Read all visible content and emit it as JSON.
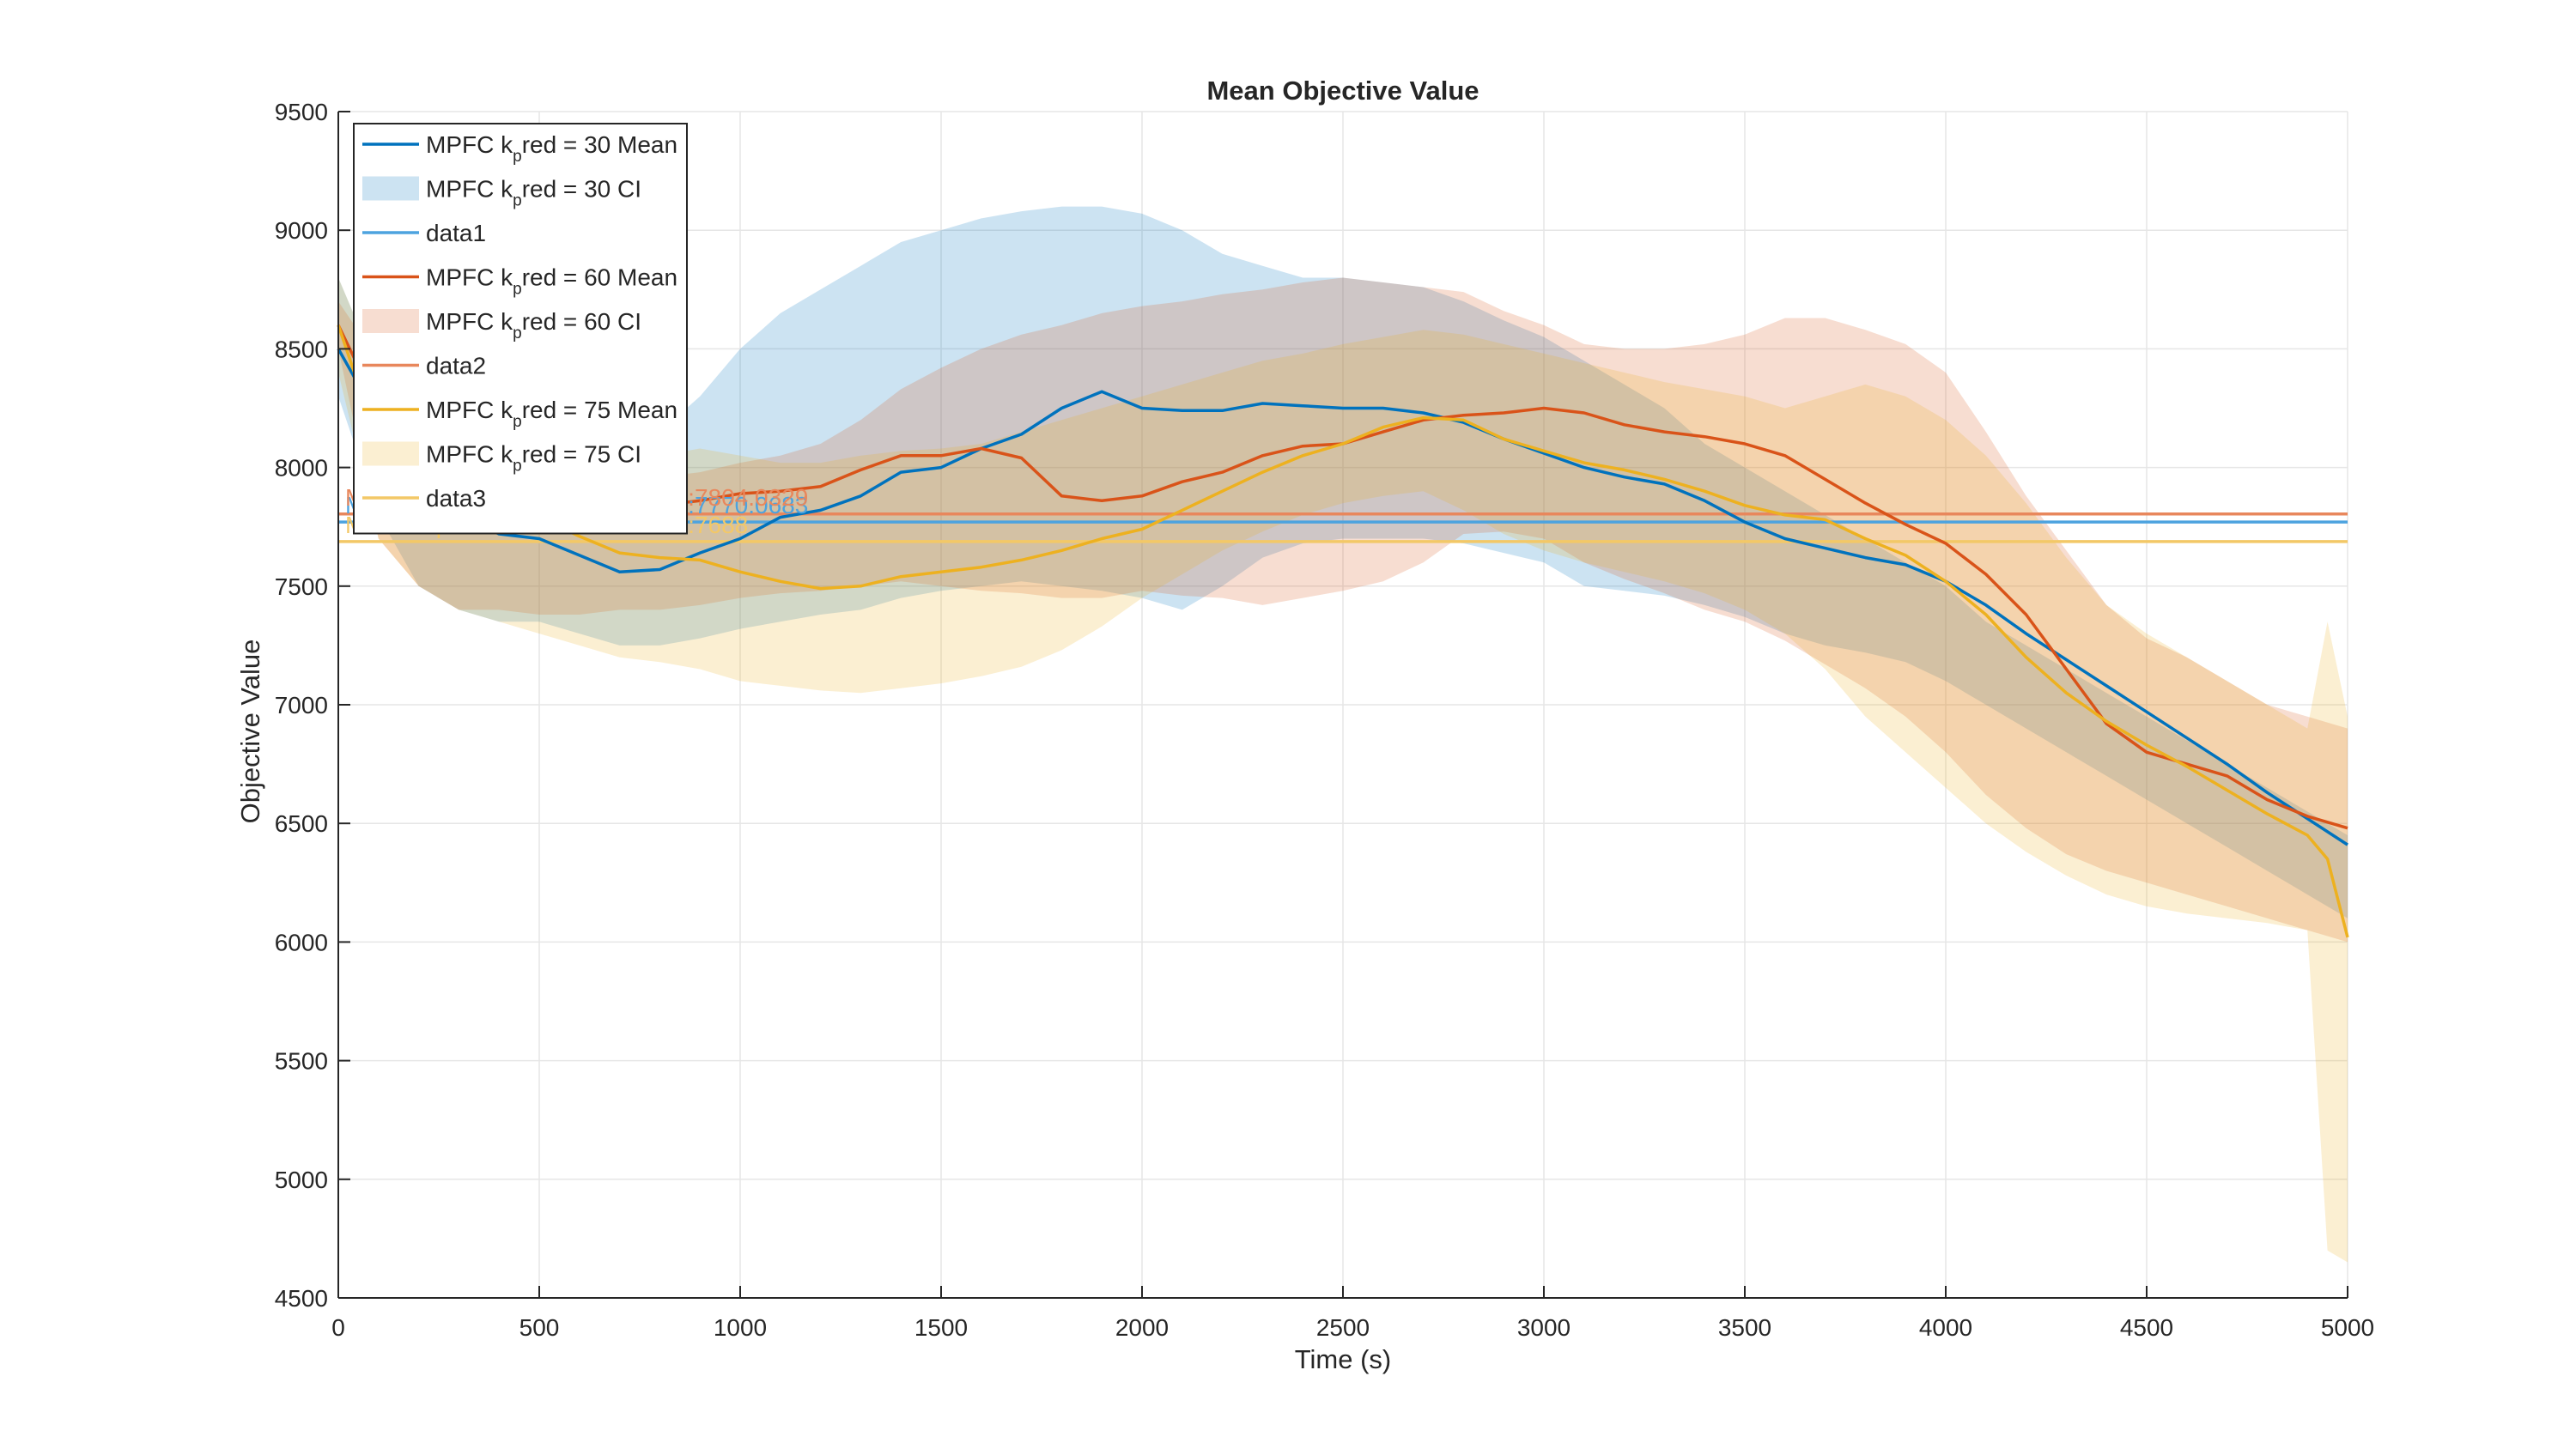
{
  "chart_data": {
    "type": "line",
    "title": "Mean Objective Value",
    "xlabel": "Time (s)",
    "ylabel": "Objective Value",
    "xlim": [
      0,
      5000
    ],
    "ylim": [
      4500,
      9500
    ],
    "xticks": [
      0,
      500,
      1000,
      1500,
      2000,
      2500,
      3000,
      3500,
      4000,
      4500,
      5000
    ],
    "yticks": [
      4500,
      5000,
      5500,
      6000,
      6500,
      7000,
      7500,
      8000,
      8500,
      9000,
      9500
    ],
    "grid": true,
    "legend_position": "top-left",
    "legend": [
      {
        "kind": "line",
        "color": "#0072BD",
        "pre": "MPFC k",
        "sub": "p",
        "post": "red = 30 Mean"
      },
      {
        "kind": "patch",
        "color": "#0072BD",
        "pre": "MPFC k",
        "sub": "p",
        "post": "red = 30 CI"
      },
      {
        "kind": "line",
        "color": "#4DA3DF",
        "pre": "data1",
        "sub": "",
        "post": ""
      },
      {
        "kind": "line",
        "color": "#D95319",
        "pre": "MPFC k",
        "sub": "p",
        "post": "red = 60 Mean"
      },
      {
        "kind": "patch",
        "color": "#D95319",
        "pre": "MPFC k",
        "sub": "p",
        "post": "red = 60 CI"
      },
      {
        "kind": "line",
        "color": "#E8875C",
        "pre": "data2",
        "sub": "",
        "post": ""
      },
      {
        "kind": "line",
        "color": "#EDB120",
        "pre": "MPFC k",
        "sub": "p",
        "post": "red = 75 Mean"
      },
      {
        "kind": "patch",
        "color": "#EDB120",
        "pre": "MPFC k",
        "sub": "p",
        "post": "red = 75 CI"
      },
      {
        "kind": "line",
        "color": "#F3C867",
        "pre": "data3",
        "sub": "",
        "post": ""
      }
    ],
    "overall_means": [
      {
        "value": 7770.0683,
        "color": "#4DA3DF",
        "label": "MPFC Kpred = 30 Overall Mean:7770.0683"
      },
      {
        "value": 7804.0329,
        "color": "#E8875C",
        "label": "MPFC Kpred = 60 Overall Mean:7804.0329"
      },
      {
        "value": 7688.0,
        "color": "#F3C867",
        "label": "MPFC Kpred = 75 Overall Mean:7688"
      }
    ],
    "series": [
      {
        "color": "#0072BD",
        "ci_color": "#0072BD",
        "x": [
          0,
          100,
          200,
          300,
          400,
          500,
          600,
          700,
          800,
          900,
          1000,
          1100,
          1200,
          1300,
          1400,
          1500,
          1600,
          1700,
          1800,
          1900,
          2000,
          2100,
          2200,
          2300,
          2400,
          2500,
          2600,
          2700,
          2800,
          2900,
          3000,
          3100,
          3200,
          3300,
          3400,
          3500,
          3600,
          3700,
          3800,
          3900,
          4000,
          4100,
          4200,
          4300,
          4400,
          4500,
          4600,
          4700,
          4800,
          4900,
          5000
        ],
        "mean": [
          8500,
          8200,
          7950,
          7800,
          7720,
          7700,
          7630,
          7560,
          7570,
          7640,
          7700,
          7790,
          7820,
          7880,
          7980,
          8000,
          8080,
          8140,
          8250,
          8320,
          8250,
          8240,
          8240,
          8270,
          8260,
          8250,
          8250,
          8230,
          8190,
          8120,
          8060,
          8000,
          7960,
          7930,
          7860,
          7770,
          7700,
          7660,
          7620,
          7590,
          7520,
          7420,
          7300,
          7190,
          7080,
          6970,
          6860,
          6750,
          6630,
          6520,
          6410
        ],
        "lower": [
          8300,
          7800,
          7500,
          7400,
          7350,
          7350,
          7300,
          7250,
          7250,
          7280,
          7320,
          7350,
          7380,
          7400,
          7450,
          7480,
          7500,
          7520,
          7500,
          7480,
          7450,
          7400,
          7500,
          7620,
          7680,
          7700,
          7700,
          7700,
          7680,
          7640,
          7600,
          7500,
          7480,
          7460,
          7420,
          7370,
          7300,
          7250,
          7220,
          7180,
          7100,
          7000,
          6900,
          6800,
          6700,
          6600,
          6500,
          6400,
          6300,
          6200,
          6100
        ],
        "upper": [
          8800,
          8400,
          8150,
          8050,
          7950,
          7950,
          7950,
          8000,
          8150,
          8300,
          8500,
          8650,
          8750,
          8850,
          8950,
          9000,
          9050,
          9080,
          9100,
          9100,
          9070,
          9000,
          8900,
          8850,
          8800,
          8800,
          8780,
          8760,
          8700,
          8620,
          8550,
          8450,
          8350,
          8250,
          8100,
          8000,
          7900,
          7800,
          7700,
          7600,
          7500,
          7350,
          7250,
          7150,
          7050,
          6950,
          6850,
          6750,
          6650,
          6550,
          6450
        ]
      },
      {
        "color": "#D95319",
        "ci_color": "#D95319",
        "x": [
          0,
          100,
          200,
          300,
          400,
          500,
          600,
          700,
          800,
          900,
          1000,
          1100,
          1200,
          1300,
          1400,
          1500,
          1600,
          1700,
          1800,
          1900,
          2000,
          2100,
          2200,
          2300,
          2400,
          2500,
          2600,
          2700,
          2800,
          2900,
          3000,
          3100,
          3200,
          3300,
          3400,
          3500,
          3600,
          3700,
          3800,
          3900,
          4000,
          4100,
          4200,
          4300,
          4400,
          4500,
          4600,
          4700,
          4800,
          4900,
          5000
        ],
        "mean": [
          8600,
          8250,
          7900,
          7900,
          7850,
          7820,
          7830,
          7830,
          7840,
          7860,
          7890,
          7900,
          7920,
          7990,
          8050,
          8050,
          8080,
          8040,
          7880,
          7860,
          7880,
          7940,
          7980,
          8050,
          8090,
          8100,
          8150,
          8200,
          8220,
          8230,
          8250,
          8230,
          8180,
          8150,
          8130,
          8100,
          8050,
          7950,
          7850,
          7760,
          7680,
          7550,
          7380,
          7150,
          6920,
          6800,
          6750,
          6700,
          6600,
          6530,
          6480
        ],
        "lower": [
          8500,
          7700,
          7500,
          7400,
          7400,
          7380,
          7380,
          7400,
          7400,
          7420,
          7450,
          7470,
          7480,
          7500,
          7520,
          7500,
          7480,
          7470,
          7450,
          7450,
          7480,
          7460,
          7450,
          7420,
          7450,
          7480,
          7520,
          7600,
          7720,
          7730,
          7700,
          7600,
          7530,
          7470,
          7400,
          7350,
          7270,
          7170,
          7070,
          6950,
          6800,
          6620,
          6480,
          6370,
          6300,
          6250,
          6200,
          6150,
          6100,
          6050,
          6000
        ],
        "upper": [
          8700,
          8450,
          8150,
          8100,
          8050,
          8000,
          7980,
          7950,
          7960,
          7980,
          8020,
          8050,
          8100,
          8200,
          8330,
          8420,
          8500,
          8560,
          8600,
          8650,
          8680,
          8700,
          8730,
          8750,
          8780,
          8800,
          8780,
          8760,
          8740,
          8660,
          8600,
          8520,
          8500,
          8500,
          8520,
          8560,
          8630,
          8630,
          8580,
          8520,
          8400,
          8150,
          7880,
          7650,
          7420,
          7280,
          7200,
          7100,
          7000,
          6950,
          6900
        ]
      },
      {
        "color": "#EDB120",
        "ci_color": "#EDB120",
        "x": [
          0,
          100,
          200,
          300,
          400,
          500,
          600,
          700,
          800,
          900,
          1000,
          1100,
          1200,
          1300,
          1400,
          1500,
          1600,
          1700,
          1800,
          1900,
          2000,
          2100,
          2200,
          2300,
          2400,
          2500,
          2600,
          2700,
          2800,
          2900,
          3000,
          3100,
          3200,
          3300,
          3400,
          3500,
          3600,
          3700,
          3800,
          3900,
          4000,
          4100,
          4200,
          4300,
          4400,
          4500,
          4600,
          4700,
          4800,
          4900,
          4950,
          5000
        ],
        "mean": [
          8600,
          8100,
          7950,
          7850,
          7790,
          7790,
          7710,
          7640,
          7620,
          7610,
          7560,
          7520,
          7490,
          7500,
          7540,
          7560,
          7580,
          7610,
          7650,
          7700,
          7740,
          7820,
          7900,
          7980,
          8050,
          8100,
          8170,
          8210,
          8200,
          8120,
          8070,
          8020,
          7990,
          7950,
          7900,
          7840,
          7800,
          7780,
          7700,
          7630,
          7520,
          7380,
          7200,
          7050,
          6930,
          6830,
          6740,
          6640,
          6540,
          6450,
          6350,
          6020
        ],
        "lower": [
          8400,
          7700,
          7500,
          7400,
          7350,
          7300,
          7250,
          7200,
          7180,
          7150,
          7100,
          7080,
          7060,
          7050,
          7070,
          7090,
          7120,
          7160,
          7230,
          7330,
          7450,
          7550,
          7650,
          7730,
          7800,
          7850,
          7880,
          7900,
          7820,
          7720,
          7650,
          7600,
          7560,
          7520,
          7470,
          7400,
          7300,
          7150,
          6950,
          6800,
          6650,
          6500,
          6380,
          6280,
          6200,
          6150,
          6120,
          6100,
          6080,
          6050,
          4700,
          4650
        ],
        "upper": [
          8800,
          8400,
          8300,
          8200,
          8150,
          8150,
          8100,
          8050,
          8050,
          8080,
          8050,
          8020,
          8020,
          8050,
          8070,
          8080,
          8100,
          8150,
          8200,
          8250,
          8300,
          8350,
          8400,
          8450,
          8480,
          8520,
          8550,
          8580,
          8560,
          8520,
          8480,
          8440,
          8400,
          8360,
          8330,
          8300,
          8250,
          8300,
          8350,
          8300,
          8200,
          8050,
          7850,
          7620,
          7420,
          7300,
          7200,
          7100,
          7000,
          6900,
          7350,
          6950
        ]
      }
    ]
  }
}
